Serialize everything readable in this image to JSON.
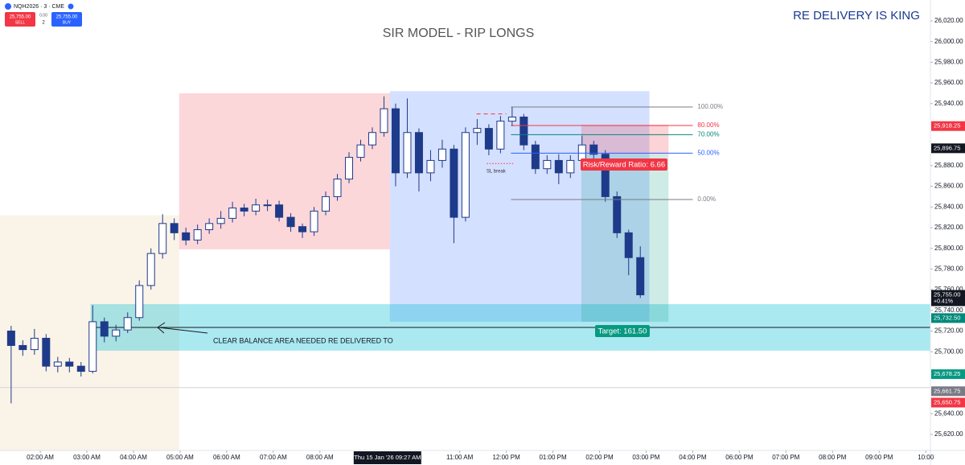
{
  "chart_data": {
    "type": "candlestick",
    "title": "SIR MODEL  - RIP LONGS",
    "subtitle": "RE DELIVERY IS KING",
    "toolbar": {
      "symbol": "NQH2026 · 3 · CME",
      "sell_price": "25,755.00",
      "sell": "SELL",
      "spread": "0.00",
      "qty": "2",
      "buy_price": "25,755.00",
      "buy": "BUY"
    },
    "x": [
      1.375,
      1.625,
      1.875,
      2.125,
      2.375,
      2.625,
      2.875,
      3.125,
      3.375,
      3.625,
      3.875,
      4.125,
      4.375,
      4.625,
      4.875,
      5.125,
      5.375,
      5.625,
      5.875,
      6.125,
      6.375,
      6.625,
      6.875,
      7.125,
      7.375,
      7.625,
      7.875,
      8.125,
      8.375,
      8.625,
      8.875,
      9.125,
      9.375,
      9.625,
      9.875,
      10.125,
      10.375,
      10.625,
      10.875,
      11.125,
      11.375,
      11.625,
      11.875,
      12.125,
      12.375,
      12.625,
      12.875,
      13.125,
      13.375,
      13.625,
      13.875,
      14.125,
      14.375,
      14.625,
      14.875
    ],
    "open": [
      25720,
      25706,
      25702,
      25713,
      25686,
      25690,
      25686,
      25681,
      25729,
      25715,
      25721,
      25733,
      25764,
      25795,
      25824,
      25815,
      25808,
      25818,
      25824,
      25829,
      25839,
      25836,
      25842,
      25842,
      25830,
      25821,
      25816,
      25836,
      25850,
      25867,
      25888,
      25900,
      25912,
      25935,
      25873,
      25912,
      25873,
      25885,
      25896,
      25830,
      25912,
      25916,
      25896,
      25923,
      25927,
      25900,
      25877,
      25885,
      25873,
      25885,
      25900,
      25891,
      25850,
      25815,
      25791
    ],
    "high": [
      25725,
      25711,
      25722,
      25717,
      25695,
      25694,
      25690,
      25745,
      25733,
      25726,
      25738,
      25769,
      25800,
      25833,
      25829,
      25820,
      25823,
      25829,
      25836,
      25845,
      25843,
      25848,
      25847,
      25846,
      25834,
      25824,
      25840,
      25855,
      25872,
      25893,
      25905,
      25917,
      25947,
      25940,
      25945,
      25916,
      25895,
      25905,
      25900,
      25917,
      25925,
      25920,
      25928,
      25937,
      25930,
      25904,
      25890,
      25891,
      25890,
      25909,
      25904,
      25895,
      25855,
      25818,
      25802
    ],
    "low": [
      25650,
      25696,
      25697,
      25681,
      25680,
      25680,
      25676,
      25679,
      25709,
      25710,
      25718,
      25730,
      25760,
      25790,
      25808,
      25803,
      25804,
      25814,
      25819,
      25825,
      25831,
      25832,
      25836,
      25826,
      25816,
      25810,
      25812,
      25832,
      25846,
      25863,
      25884,
      25896,
      25908,
      25860,
      25868,
      25855,
      25865,
      25878,
      25805,
      25826,
      25900,
      25890,
      25892,
      25918,
      25895,
      25872,
      25872,
      25862,
      25868,
      25880,
      25885,
      25845,
      25810,
      25774,
      25752
    ],
    "close": [
      25706,
      25702,
      25713,
      25686,
      25690,
      25686,
      25681,
      25729,
      25715,
      25721,
      25733,
      25764,
      25795,
      25824,
      25815,
      25808,
      25818,
      25824,
      25829,
      25839,
      25836,
      25842,
      25842,
      25830,
      25821,
      25816,
      25836,
      25850,
      25867,
      25888,
      25900,
      25912,
      25935,
      25873,
      25912,
      25873,
      25885,
      25896,
      25830,
      25912,
      25916,
      25896,
      25923,
      25927,
      25900,
      25877,
      25885,
      25873,
      25885,
      25900,
      25891,
      25850,
      25815,
      25791,
      25755
    ],
    "up_color": "#ffffff",
    "down_color": "#1e3a8a",
    "wick_color": "#1e3a8a",
    "xlim": [
      1.136,
      21.1
    ],
    "xticks": [
      {
        "value": 2,
        "label": "02:00 AM"
      },
      {
        "value": 3,
        "label": "03:00 AM"
      },
      {
        "value": 4,
        "label": "04:00 AM"
      },
      {
        "value": 5,
        "label": "05:00 AM"
      },
      {
        "value": 6,
        "label": "06:00 AM"
      },
      {
        "value": 7,
        "label": "07:00 AM"
      },
      {
        "value": 8,
        "label": "08:00 AM"
      },
      {
        "value": 11,
        "label": "11:00 AM"
      },
      {
        "value": 12,
        "label": "12:00 PM"
      },
      {
        "value": 13,
        "label": "01:00 PM"
      },
      {
        "value": 14,
        "label": "02:00 PM"
      },
      {
        "value": 15,
        "label": "03:00 PM"
      },
      {
        "value": 16,
        "label": "04:00 PM"
      },
      {
        "value": 17,
        "label": "06:00 PM"
      },
      {
        "value": 18,
        "label": "07:00 PM"
      },
      {
        "value": 19,
        "label": "08:00 PM"
      },
      {
        "value": 20,
        "label": "09:00 PM"
      },
      {
        "value": 21,
        "label": "10:00"
      }
    ],
    "crosshair_x_label": "Thu 15 Jan '26   09:27 AM",
    "crosshair_x": 9.45,
    "ylim": [
      25604.4,
      26040.2
    ],
    "yticks": [
      {
        "value": 26020,
        "label": "26,020.00"
      },
      {
        "value": 26000,
        "label": "26,000.00"
      },
      {
        "value": 25980,
        "label": "25,980.00"
      },
      {
        "value": 25960,
        "label": "25,960.00"
      },
      {
        "value": 25940,
        "label": "25,940.00"
      },
      {
        "value": 25880,
        "label": "25,880.00"
      },
      {
        "value": 25860,
        "label": "25,860.00"
      },
      {
        "value": 25840,
        "label": "25,840.00"
      },
      {
        "value": 25820,
        "label": "25,820.00"
      },
      {
        "value": 25800,
        "label": "25,800.00"
      },
      {
        "value": 25780,
        "label": "25,780.00"
      },
      {
        "value": 25760,
        "label": "25,760.00"
      },
      {
        "value": 25740,
        "label": "25,740.00"
      },
      {
        "value": 25720,
        "label": "25,720.00"
      },
      {
        "value": 25700,
        "label": "25,700.00"
      },
      {
        "value": 25640,
        "label": "25,640.00"
      },
      {
        "value": 25620,
        "label": "25,620.00"
      }
    ],
    "grid": false,
    "zones": [
      {
        "x": [
          1.136,
          4.98
        ],
        "y": [
          25604.4,
          25832
        ],
        "color": "rgba(240,215,180,0.3)"
      },
      {
        "x": [
          4.98,
          9.5
        ],
        "y": [
          25799,
          25950
        ],
        "color": "rgba(242,54,69,0.2)"
      },
      {
        "x": [
          9.5,
          15.07
        ],
        "y": [
          25729,
          25952
        ],
        "color": "rgba(41,98,255,0.2)"
      },
      {
        "x": [
          3.08,
          21.1
        ],
        "y": [
          25701,
          25746
        ],
        "color": "rgba(0,188,212,0.33)"
      },
      {
        "x": [
          13.61,
          15.48
        ],
        "y": [
          25891,
          25919.5
        ],
        "color": "rgba(242,54,69,0.22)"
      },
      {
        "x": [
          13.61,
          15.48
        ],
        "y": [
          25729,
          25891
        ],
        "color": "rgba(8,153,129,0.2)"
      }
    ],
    "lines": [
      {
        "x": [
          3.08,
          21.1
        ],
        "y": 25723.5,
        "color": "#131722",
        "style": "solid"
      },
      {
        "x": [
          1.136,
          21.1
        ],
        "y": 25665.3,
        "color": "#d1d4dc",
        "style": "solid"
      },
      {
        "x": [
          11.58,
          12.18
        ],
        "y": 25882,
        "color": "#f23645",
        "style": "dotted"
      },
      {
        "x": [
          11.36,
          12.0
        ],
        "y": 25930,
        "color": "#f23645",
        "style": "dashed"
      }
    ],
    "fib_x": [
      12.1,
      16.0
    ],
    "fib": [
      {
        "label": "100.00%",
        "value": 25936.7,
        "color": "#787b86"
      },
      {
        "label": "80.00%",
        "value": 25918.8,
        "color": "#f23645"
      },
      {
        "label": "70.00%",
        "value": 25909.9,
        "color": "#00897b"
      },
      {
        "label": "50.00%",
        "value": 25892,
        "color": "#2962ff"
      },
      {
        "label": "0.00%",
        "value": 25847.2,
        "color": "#787b86"
      }
    ],
    "price_badges": [
      {
        "value": 25918.25,
        "label": "25,918.25",
        "color": "#f23645"
      },
      {
        "value": 25896.75,
        "label": "25,896.75",
        "color": "#131722"
      },
      {
        "value": 25755,
        "label": "25,755.00",
        "change": "+0.41%",
        "color": "#131722"
      },
      {
        "value": 25732.5,
        "label": "25,732.50",
        "color": "#00897b"
      },
      {
        "value": 25678.25,
        "label": "25,678.25",
        "color": "#089981"
      },
      {
        "value": 25661.75,
        "label": "25,661.75",
        "color": "#787b86"
      },
      {
        "value": 25650.75,
        "label": "25,650.75",
        "color": "#f23645"
      }
    ],
    "annotations": {
      "sl": "SL break",
      "balance": "CLEAR BALANCE AREA NEEDED RE DELIVERED TO",
      "rr": "Risk/Reward Ratio: 6.66",
      "target": "Target: 161.50"
    }
  }
}
